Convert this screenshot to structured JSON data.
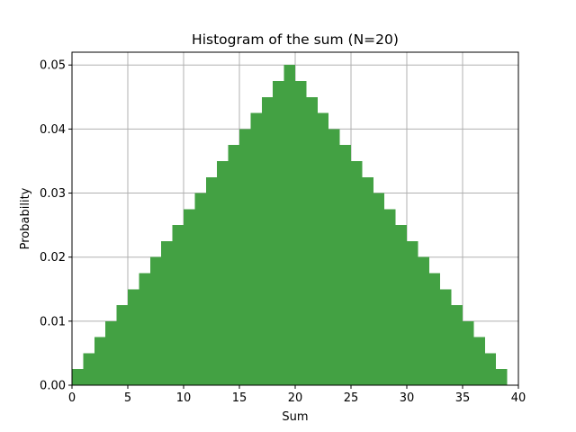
{
  "chart_data": {
    "type": "bar",
    "title": "Histogram of the sum (N=20)",
    "xlabel": "Sum",
    "ylabel": "Probability",
    "xlim": [
      0,
      40
    ],
    "ylim": [
      0,
      0.052
    ],
    "xticks": [
      "0",
      "5",
      "10",
      "15",
      "20",
      "25",
      "30",
      "35",
      "40"
    ],
    "yticks": [
      "0.00",
      "0.01",
      "0.02",
      "0.03",
      "0.04",
      "0.05"
    ],
    "grid": true,
    "bar_color": "#43a143",
    "bin_edges": [
      0,
      1,
      2,
      3,
      4,
      5,
      6,
      7,
      8,
      9,
      10,
      11,
      12,
      13,
      14,
      15,
      16,
      17,
      18,
      19,
      20,
      21,
      22,
      23,
      24,
      25,
      26,
      27,
      28,
      29,
      30,
      31,
      32,
      33,
      34,
      35,
      36,
      37,
      38,
      39
    ],
    "values": [
      0.0025,
      0.005,
      0.0075,
      0.01,
      0.0125,
      0.015,
      0.0175,
      0.02,
      0.0225,
      0.025,
      0.0275,
      0.03,
      0.0325,
      0.035,
      0.0375,
      0.04,
      0.0425,
      0.045,
      0.0475,
      0.05,
      0.0475,
      0.045,
      0.0425,
      0.04,
      0.0375,
      0.035,
      0.0325,
      0.03,
      0.0275,
      0.025,
      0.0225,
      0.02,
      0.0175,
      0.015,
      0.0125,
      0.01,
      0.0075,
      0.005,
      0.0025
    ]
  }
}
